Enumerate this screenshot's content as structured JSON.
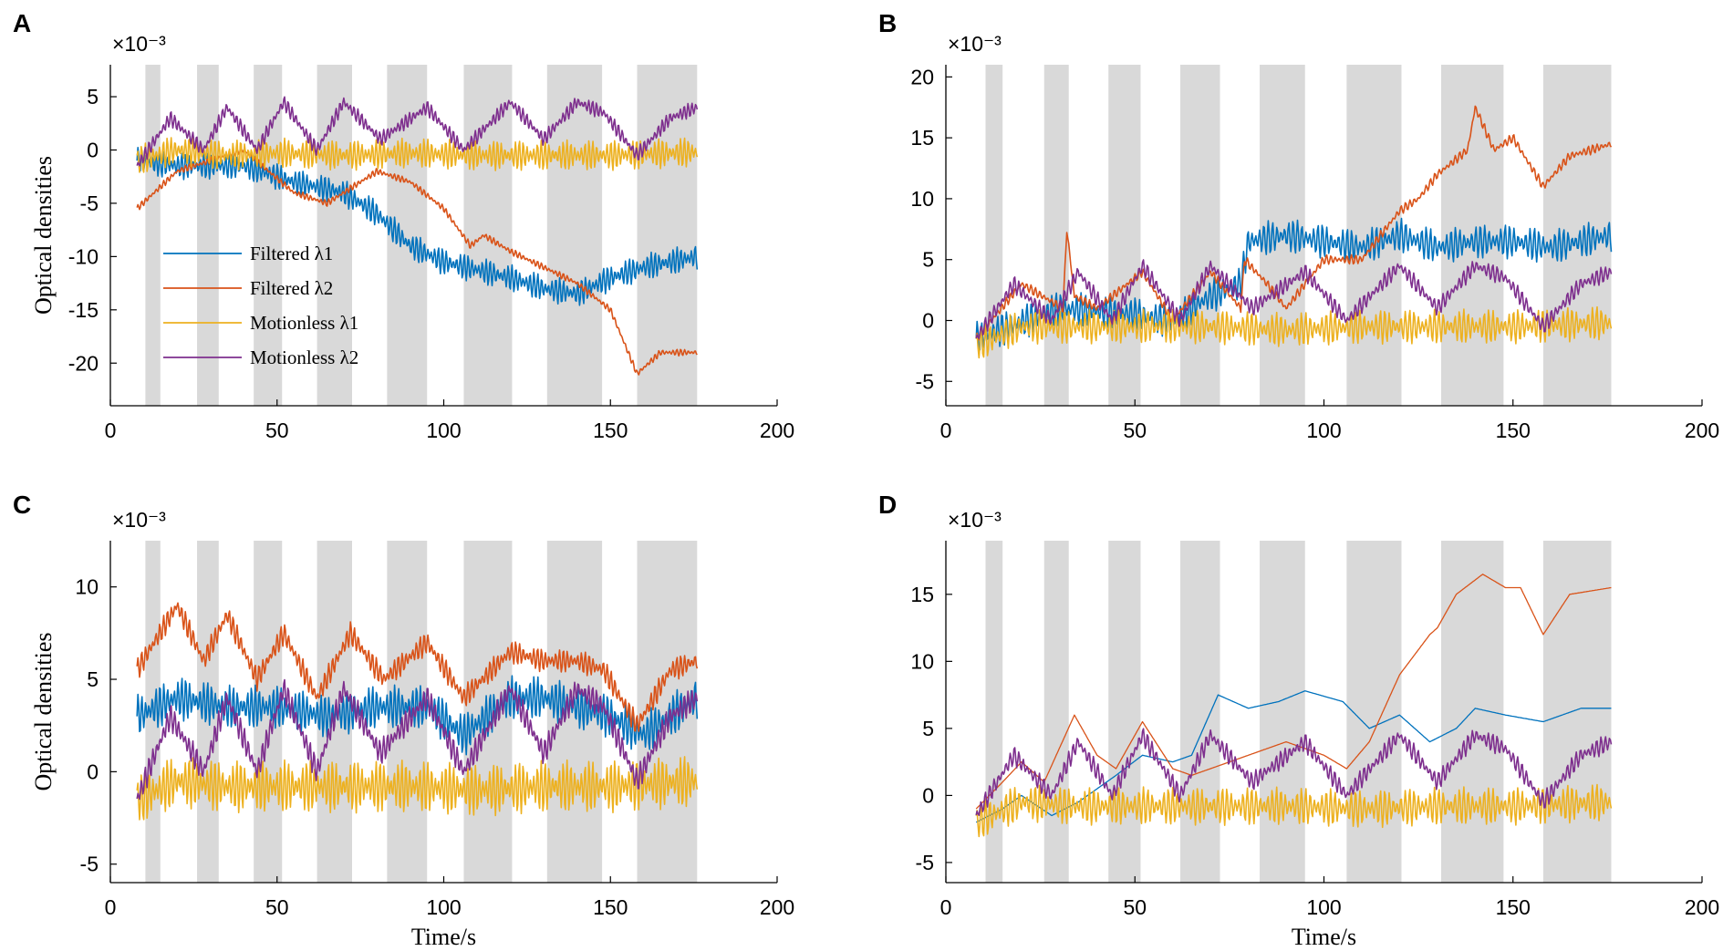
{
  "chart_data": [
    {
      "panel": "A",
      "type": "line",
      "ylabel": "Optical densities",
      "xlabel": "",
      "yexp": "×10⁻³",
      "xlim": [
        0,
        200
      ],
      "ylim": [
        -24,
        8
      ],
      "xticks": [
        0,
        50,
        100,
        150,
        200
      ],
      "yticks": [
        -20,
        -15,
        -10,
        -5,
        0,
        5
      ],
      "ytick_labels": [
        "-20",
        "-15",
        "-10",
        "-5",
        "0",
        "5"
      ],
      "shaded_intervals": [
        [
          10.5,
          15
        ],
        [
          26,
          32.5
        ],
        [
          43,
          51.5
        ],
        [
          62,
          72.5
        ],
        [
          83,
          95
        ],
        [
          106,
          120.5
        ],
        [
          131,
          147.5
        ],
        [
          158,
          176
        ]
      ],
      "legend": [
        "Filtered λ1",
        "Filtered λ2",
        "Motionless λ1",
        "Motionless λ2"
      ],
      "series": [
        {
          "name": "Filtered λ1",
          "color": "#0072BD",
          "osc": 1.6,
          "x": [
            8,
            20,
            40,
            55,
            70,
            80,
            90,
            100,
            120,
            130,
            140,
            150,
            160,
            176
          ],
          "y": [
            -1,
            -1.5,
            -1.5,
            -3,
            -4,
            -6,
            -9,
            -10.5,
            -12,
            -13,
            -13.5,
            -12,
            -11,
            -10
          ]
        },
        {
          "name": "Filtered λ2",
          "color": "#D95319",
          "osc": 0.4,
          "x": [
            8,
            20,
            40,
            55,
            65,
            80,
            90,
            100,
            108,
            112,
            120,
            130,
            140,
            150,
            158,
            165,
            176
          ],
          "y": [
            -5.5,
            -2,
            0,
            -4,
            -5,
            -2,
            -3,
            -5.5,
            -9,
            -8,
            -9.5,
            -11,
            -12.5,
            -15,
            -21,
            -19,
            -19
          ]
        },
        {
          "name": "Motionless λ1",
          "color": "#EDB120",
          "osc": 1.8,
          "x": [
            8,
            20,
            35,
            50,
            70,
            90,
            110,
            130,
            150,
            176
          ],
          "y": [
            -1,
            0,
            -0.5,
            -0.3,
            -0.5,
            -0.3,
            -0.5,
            -0.5,
            -0.5,
            -0.2
          ]
        },
        {
          "name": "Motionless λ2",
          "color": "#7E2F8E",
          "osc": 0.9,
          "x": [
            8,
            18,
            28,
            35,
            44,
            52,
            62,
            70,
            81,
            95,
            106,
            120,
            130,
            140,
            148,
            158,
            168,
            176
          ],
          "y": [
            -1.5,
            3,
            0,
            4,
            0,
            4.5,
            0,
            4.5,
            1,
            4,
            0,
            4.5,
            1,
            4.5,
            3.5,
            -0.5,
            3,
            4
          ]
        }
      ]
    },
    {
      "panel": "B",
      "type": "line",
      "ylabel": "",
      "xlabel": "",
      "yexp": "×10⁻³",
      "xlim": [
        0,
        200
      ],
      "ylim": [
        -7,
        21
      ],
      "xticks": [
        0,
        50,
        100,
        150,
        200
      ],
      "yticks": [
        -5,
        0,
        5,
        10,
        15,
        20
      ],
      "ytick_labels": [
        "-5",
        "0",
        "5",
        "10",
        "15",
        "20"
      ],
      "shaded_intervals": [
        [
          10.5,
          15
        ],
        [
          26,
          32.5
        ],
        [
          43,
          51.5
        ],
        [
          62,
          72.5
        ],
        [
          83,
          95
        ],
        [
          106,
          120.5
        ],
        [
          131,
          147.5
        ],
        [
          158,
          176
        ]
      ],
      "legend": [],
      "series": [
        {
          "name": "Filtered λ1",
          "color": "#0072BD",
          "osc": 1.8,
          "x": [
            8,
            30,
            50,
            60,
            70,
            78,
            80,
            90,
            100,
            110,
            120,
            130,
            140,
            150,
            160,
            176
          ],
          "y": [
            -1.5,
            1,
            0.5,
            0,
            2,
            3,
            6.5,
            7,
            6.5,
            6,
            7,
            6,
            6.5,
            6.5,
            6,
            7
          ]
        },
        {
          "name": "Filtered λ2",
          "color": "#D95319",
          "osc": 0.5,
          "x": [
            8,
            20,
            31,
            32,
            34,
            40,
            52,
            60,
            70,
            78,
            79,
            85,
            90,
            100,
            110,
            120,
            125,
            130,
            138,
            140,
            145,
            150,
            158,
            165,
            176
          ],
          "y": [
            -1.5,
            3,
            1,
            7.5,
            2,
            1,
            4,
            0,
            4,
            1,
            5,
            3,
            1,
            5,
            5,
            9,
            10,
            12,
            14,
            17.5,
            14,
            15,
            11,
            13.5,
            14.5
          ]
        },
        {
          "name": "Motionless λ1",
          "color": "#EDB120",
          "osc": 1.8,
          "x": [
            8,
            20,
            35,
            50,
            70,
            90,
            110,
            130,
            150,
            176
          ],
          "y": [
            -2,
            -0.5,
            -0.5,
            -0.5,
            -0.5,
            -0.8,
            -0.5,
            -0.5,
            -0.5,
            -0.2
          ]
        },
        {
          "name": "Motionless λ2",
          "color": "#7E2F8E",
          "osc": 0.9,
          "x": [
            8,
            18,
            28,
            35,
            44,
            52,
            62,
            70,
            81,
            95,
            106,
            120,
            130,
            140,
            148,
            158,
            168,
            176
          ],
          "y": [
            -1.5,
            3,
            0,
            4,
            0,
            4.5,
            0,
            4.5,
            1,
            4,
            0,
            4.5,
            1,
            4.5,
            3.5,
            -0.5,
            3,
            4
          ]
        }
      ]
    },
    {
      "panel": "C",
      "type": "line",
      "ylabel": "Optical densities",
      "xlabel": "",
      "yexp": "×10⁻³",
      "xlim": [
        0,
        200
      ],
      "ylim": [
        -6,
        12.5
      ],
      "xticks": [
        0,
        50,
        100,
        150,
        200
      ],
      "yticks": [
        -5,
        0,
        5,
        10
      ],
      "ytick_labels": [
        "-5",
        "0",
        "5",
        "10"
      ],
      "shaded_intervals": [
        [
          10.5,
          15
        ],
        [
          26,
          32.5
        ],
        [
          43,
          51.5
        ],
        [
          62,
          72.5
        ],
        [
          83,
          95
        ],
        [
          106,
          120.5
        ],
        [
          131,
          147.5
        ],
        [
          158,
          176
        ]
      ],
      "legend": [],
      "series": [
        {
          "name": "Filtered λ1",
          "color": "#0072BD",
          "osc": 1.5,
          "x": [
            8,
            20,
            35,
            50,
            65,
            80,
            95,
            106,
            120,
            130,
            140,
            150,
            160,
            176
          ],
          "y": [
            3,
            4,
            3.5,
            3.5,
            3,
            3.5,
            3.5,
            2,
            4,
            4,
            3.5,
            3,
            2,
            4
          ]
        },
        {
          "name": "Filtered λ2",
          "color": "#D95319",
          "osc": 0.8,
          "x": [
            8,
            20,
            28,
            35,
            44,
            52,
            62,
            72,
            82,
            95,
            106,
            120,
            130,
            140,
            148,
            158,
            168,
            176
          ],
          "y": [
            5.5,
            9,
            6,
            8.5,
            5,
            7.5,
            4,
            7.5,
            5,
            7,
            4,
            6.5,
            6,
            6,
            5.5,
            2.5,
            5.5,
            6
          ]
        },
        {
          "name": "Motionless λ1",
          "color": "#EDB120",
          "osc": 1.8,
          "x": [
            8,
            20,
            35,
            50,
            70,
            90,
            110,
            130,
            150,
            176
          ],
          "y": [
            -1.5,
            -0.5,
            -0.8,
            -0.8,
            -0.8,
            -0.8,
            -1,
            -0.8,
            -0.8,
            -0.5
          ]
        },
        {
          "name": "Motionless λ2",
          "color": "#7E2F8E",
          "osc": 0.9,
          "x": [
            8,
            18,
            28,
            35,
            44,
            52,
            62,
            70,
            81,
            95,
            106,
            120,
            130,
            140,
            148,
            158,
            168,
            176
          ],
          "y": [
            -1.5,
            3,
            0,
            4,
            0,
            4.5,
            0,
            4.5,
            1,
            4,
            0,
            4.5,
            1,
            4.5,
            3.5,
            -0.5,
            3,
            4
          ]
        }
      ]
    },
    {
      "panel": "D",
      "type": "line",
      "ylabel": "",
      "xlabel": "Time/s",
      "yexp": "×10⁻³",
      "xlim": [
        0,
        200
      ],
      "ylim": [
        -6.5,
        19
      ],
      "xticks": [
        0,
        50,
        100,
        150,
        200
      ],
      "yticks": [
        -5,
        0,
        5,
        10,
        15
      ],
      "ytick_labels": [
        "-5",
        "0",
        "5",
        "10",
        "15"
      ],
      "shaded_intervals": [
        [
          10.5,
          15
        ],
        [
          26,
          32.5
        ],
        [
          43,
          51.5
        ],
        [
          62,
          72.5
        ],
        [
          83,
          95
        ],
        [
          106,
          120.5
        ],
        [
          131,
          147.5
        ],
        [
          158,
          176
        ]
      ],
      "legend": [],
      "series": [
        {
          "name": "Filtered λ1",
          "color": "#0072BD",
          "osc": 0,
          "x": [
            8,
            15,
            20,
            28,
            35,
            45,
            52,
            60,
            65,
            72,
            80,
            88,
            95,
            105,
            112,
            120,
            128,
            135,
            140,
            148,
            158,
            168,
            176
          ],
          "y": [
            -2,
            -1,
            0,
            -1.5,
            -0.5,
            1.5,
            3,
            2.5,
            3,
            7.5,
            6.5,
            7,
            7.8,
            7,
            5,
            6,
            4,
            5,
            6.5,
            6,
            5.5,
            6.5,
            6.5
          ]
        },
        {
          "name": "Filtered λ2",
          "color": "#D95319",
          "osc": 0,
          "x": [
            8,
            15,
            20,
            26,
            34,
            40,
            45,
            52,
            60,
            65,
            70,
            80,
            90,
            100,
            106,
            112,
            120,
            128,
            130,
            135,
            142,
            148,
            152,
            158,
            165,
            176
          ],
          "y": [
            -1,
            1,
            2.5,
            1,
            6,
            3,
            2,
            5.5,
            2,
            1.5,
            2,
            3,
            4,
            3,
            2,
            4,
            9,
            12,
            12.5,
            15,
            16.5,
            15.5,
            15.5,
            12,
            15,
            15.5
          ]
        },
        {
          "name": "Motionless λ1",
          "color": "#EDB120",
          "osc": 1.8,
          "x": [
            8,
            20,
            35,
            50,
            70,
            90,
            110,
            130,
            150,
            176
          ],
          "y": [
            -2,
            -0.5,
            -0.8,
            -0.8,
            -0.8,
            -0.8,
            -1,
            -0.8,
            -0.8,
            -0.5
          ]
        },
        {
          "name": "Motionless λ2",
          "color": "#7E2F8E",
          "osc": 0.9,
          "x": [
            8,
            18,
            28,
            35,
            44,
            52,
            62,
            70,
            81,
            95,
            106,
            120,
            130,
            140,
            148,
            158,
            168,
            176
          ],
          "y": [
            -1.5,
            3,
            0,
            4,
            0,
            4.5,
            0,
            4.5,
            1,
            4,
            0,
            4.5,
            1,
            4.5,
            3.5,
            -0.5,
            3,
            4
          ]
        }
      ]
    }
  ]
}
